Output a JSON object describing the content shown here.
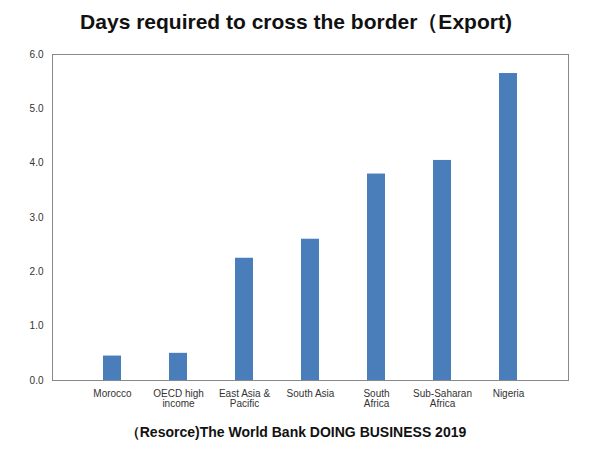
{
  "chart_data": {
    "type": "bar",
    "title": "Days required to cross the border（Export)",
    "caption": "（Resorce)The World Bank DOING BUSINESS 2019",
    "categories": [
      "Morocco",
      "OECD high income",
      "East Asia & Pacific",
      "South Asia",
      "South Africa",
      "Sub-Saharan Africa",
      "Nigeria"
    ],
    "values": [
      0.45,
      0.5,
      2.25,
      2.6,
      3.8,
      4.05,
      5.65
    ],
    "color": "#4a7ebb",
    "ylim": [
      0,
      6
    ],
    "yticks": [
      {
        "value": 0,
        "label": "0.0"
      },
      {
        "value": 1,
        "label": "1.0"
      },
      {
        "value": 2,
        "label": "2.0"
      },
      {
        "value": 3,
        "label": "3.0"
      },
      {
        "value": 4,
        "label": "4.0"
      },
      {
        "value": 5,
        "label": "5.0"
      },
      {
        "value": 6,
        "label": "6.0"
      }
    ],
    "grid": false
  }
}
